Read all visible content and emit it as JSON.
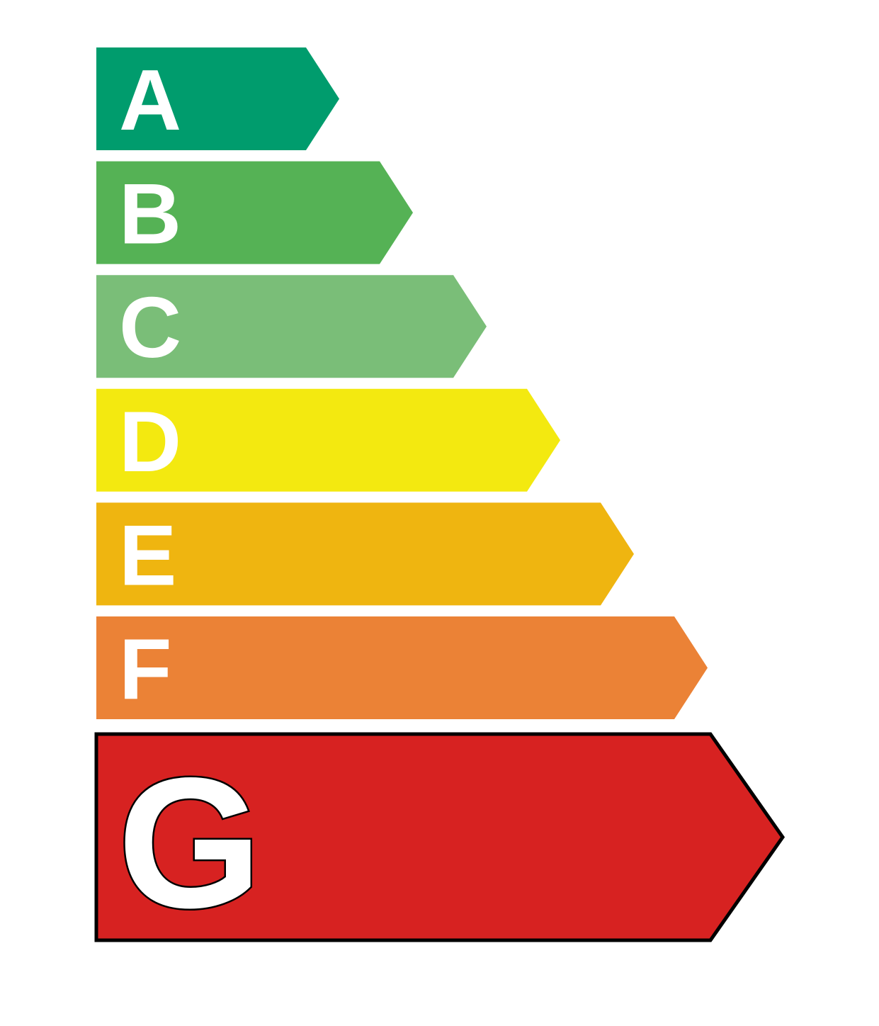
{
  "classes": [
    {
      "letter": "A",
      "color": "#009C6D"
    },
    {
      "letter": "B",
      "color": "#55B255"
    },
    {
      "letter": "C",
      "color": "#7ABE78"
    },
    {
      "letter": "D",
      "color": "#F3E910"
    },
    {
      "letter": "E",
      "color": "#EFB510"
    },
    {
      "letter": "F",
      "color": "#EB8236"
    },
    {
      "letter": "G",
      "color": "#D72221"
    }
  ],
  "selected": "G"
}
